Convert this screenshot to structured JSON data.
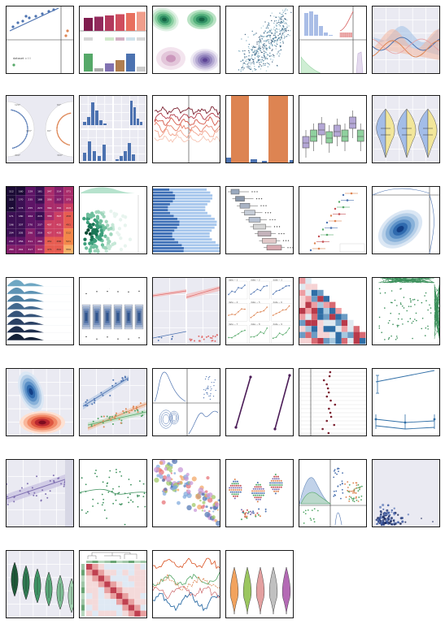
{
  "gallery": {
    "tiles": [
      {
        "id": "anscombe-quartet-scatter",
        "theme": "white",
        "labels": [
          "dataset = I I"
        ]
      },
      {
        "id": "bar-chart-grid",
        "theme": "white"
      },
      {
        "id": "density-contour-colored",
        "theme": "white"
      },
      {
        "id": "scatter-hexbin-marginal",
        "theme": "white"
      },
      {
        "id": "histogram-ecdf-panels",
        "theme": "white"
      },
      {
        "id": "timeseries-band-lines",
        "theme": "grey"
      },
      {
        "id": "polar-scatter-facets",
        "theme": "grey",
        "labels": [
          "120°",
          "60°",
          "120°",
          "60°",
          "300°",
          "300°"
        ]
      },
      {
        "id": "histogram-facets",
        "theme": "grey"
      },
      {
        "id": "multi-line-trajectories",
        "theme": "white"
      },
      {
        "id": "grouped-bar-large",
        "theme": "white"
      },
      {
        "id": "grouped-boxplot",
        "theme": "white"
      },
      {
        "id": "split-violin",
        "theme": "grey"
      },
      {
        "id": "annotated-heatmap",
        "theme": "white",
        "values": [
          [
            "112",
            "160",
            "229",
            "181",
            "347",
            "314",
            "371"
          ],
          [
            "115",
            "170",
            "235",
            "188",
            "356",
            "317",
            "373"
          ],
          [
            "145",
            "173",
            "255",
            "223",
            "364",
            "356",
            "413"
          ],
          [
            "171",
            "180",
            "264",
            "215",
            "358",
            "397",
            "458"
          ],
          [
            "196",
            "207",
            "270",
            "237",
            "407",
            "415",
            "491"
          ],
          [
            "204",
            "205",
            "296",
            "259",
            "427",
            "435",
            "512"
          ],
          [
            "242",
            "256",
            "311",
            "280",
            "451",
            "466",
            "521"
          ],
          [
            "284",
            "291",
            "317",
            "333",
            "471",
            "491",
            "559"
          ]
        ]
      },
      {
        "id": "hexbin-joint",
        "theme": "white"
      },
      {
        "id": "horizontal-bar-stacked",
        "theme": "white"
      },
      {
        "id": "horizontal-boxplot",
        "theme": "white"
      },
      {
        "id": "dot-strip-errorbars",
        "theme": "white"
      },
      {
        "id": "kde-joint-blue",
        "theme": "white"
      },
      {
        "id": "ridge-plot",
        "theme": "white"
      },
      {
        "id": "boxen-plot",
        "theme": "white"
      },
      {
        "id": "regression-facets",
        "theme": "grey"
      },
      {
        "id": "small-multiples-lines",
        "theme": "white",
        "labels": [
          "date ~ 1",
          "date ~ 2",
          "date ~ 3",
          "date ~ 4",
          "date ~ 5",
          "date ~ 6",
          "date ~ 7",
          "date ~ 8",
          "date ~ 9"
        ]
      },
      {
        "id": "correlation-triangle",
        "theme": "white"
      },
      {
        "id": "scatter-rugplot",
        "theme": "white"
      },
      {
        "id": "bivariate-kde-red-blue",
        "theme": "grey"
      },
      {
        "id": "scatter-regression-groups",
        "theme": "grey"
      },
      {
        "id": "pairgrid-kde",
        "theme": "white"
      },
      {
        "id": "paired-slopes",
        "theme": "white"
      },
      {
        "id": "strip-dot-plot",
        "theme": "white"
      },
      {
        "id": "pointplot-errorbars",
        "theme": "white"
      },
      {
        "id": "lmplot-band",
        "theme": "grey"
      },
      {
        "id": "lowess-scatter",
        "theme": "white"
      },
      {
        "id": "bubble-scatter",
        "theme": "white"
      },
      {
        "id": "swarm-plot",
        "theme": "white"
      },
      {
        "id": "pairplot-kde-scatter",
        "theme": "white"
      },
      {
        "id": "scatter-dark-points",
        "theme": "grey"
      },
      {
        "id": "violin-green",
        "theme": "grey"
      },
      {
        "id": "clustermap",
        "theme": "white"
      },
      {
        "id": "wide-lines",
        "theme": "white"
      },
      {
        "id": "violin-multicolor",
        "theme": "white"
      }
    ]
  }
}
